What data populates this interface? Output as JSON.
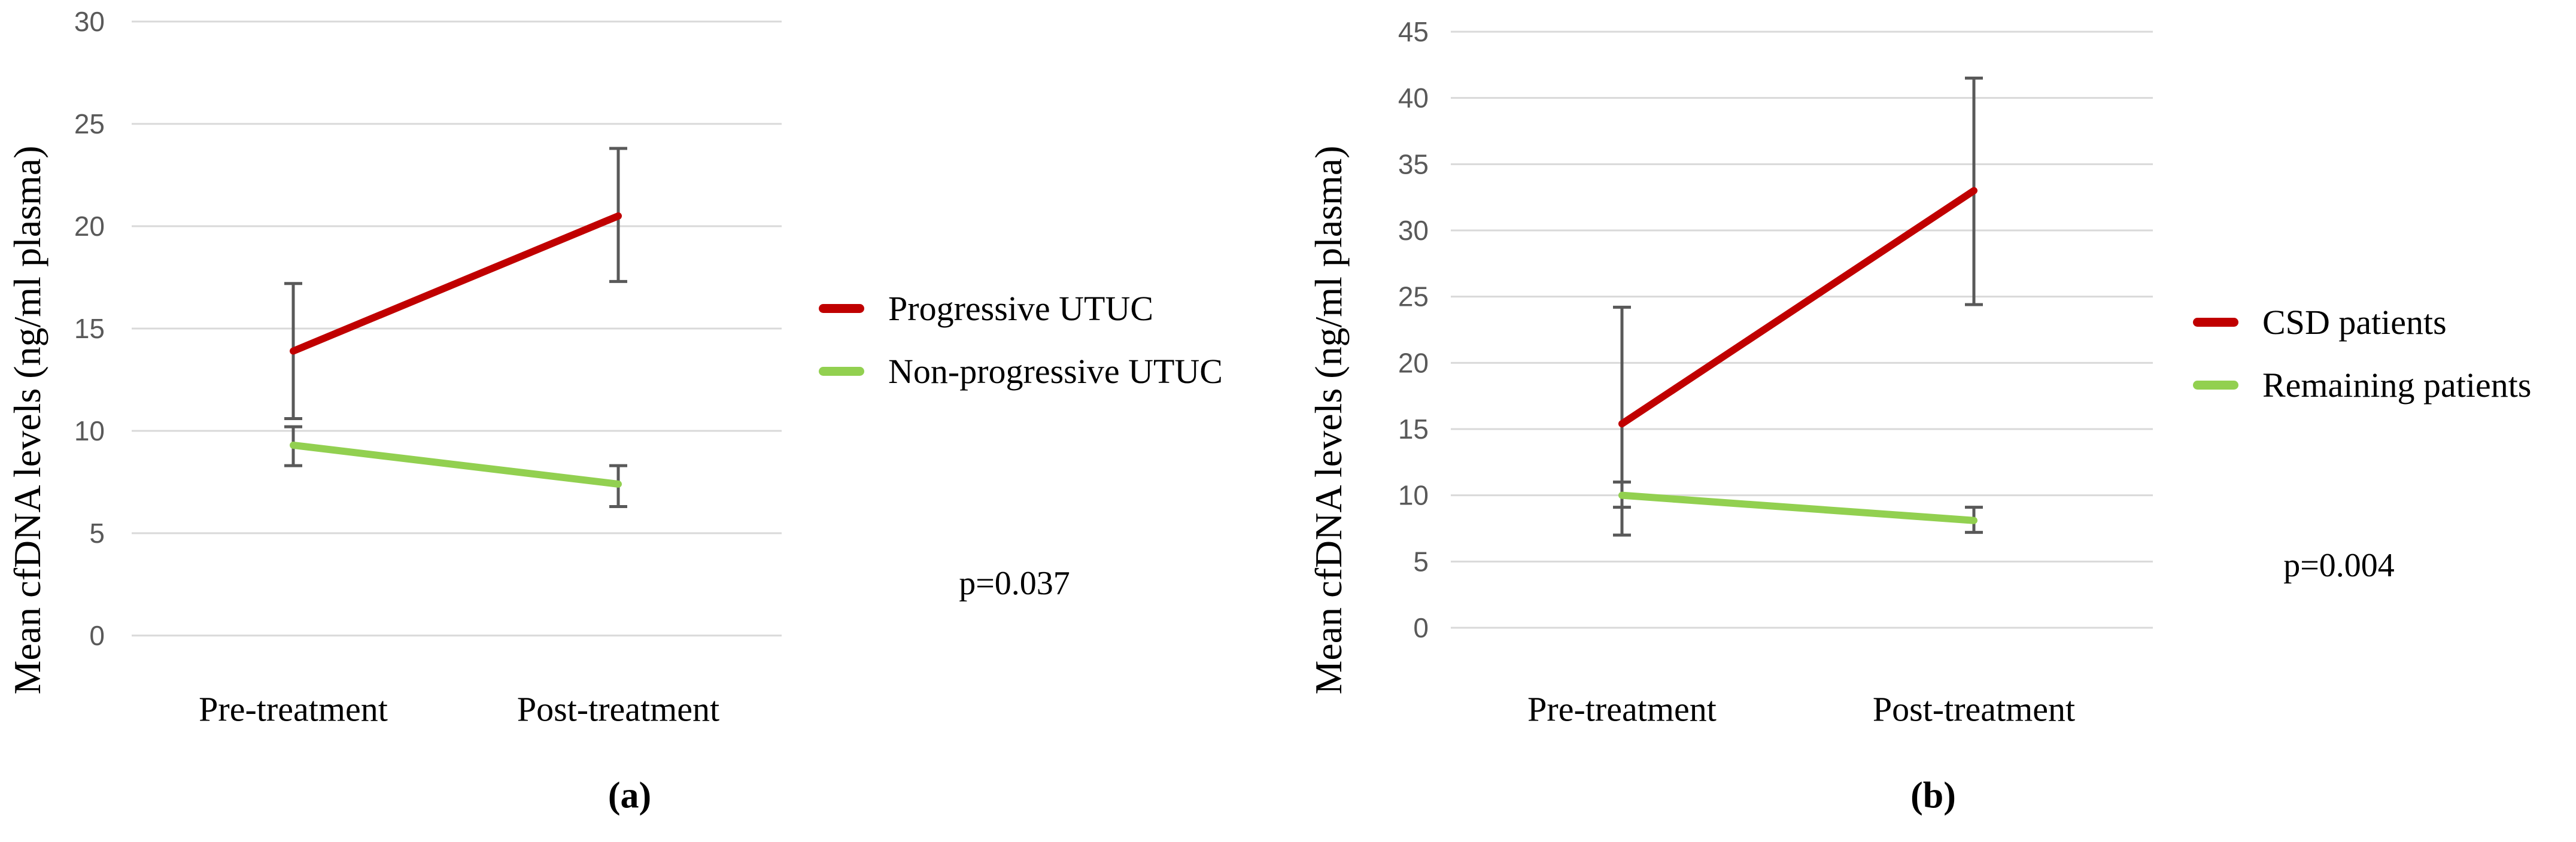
{
  "styles": {
    "grid_color": "#d9d9d9",
    "error_bar_color": "#595959",
    "tick_label_color": "#595959",
    "text_color": "#000000",
    "background_color": "#ffffff"
  },
  "chart_data": [
    {
      "type": "line",
      "panel_label": "(a)",
      "title": "",
      "xlabel": "",
      "ylabel": "Mean cfDNA levels (ng/ml plasma)",
      "categories": [
        "Pre-treatment",
        "Post-treatment"
      ],
      "ylim": [
        0,
        30
      ],
      "yticks": [
        0,
        5,
        10,
        15,
        20,
        25,
        30
      ],
      "grid": true,
      "legend_position": "right-of-plot",
      "annotation": "p=0.037",
      "series": [
        {
          "name": "Progressive UTUC",
          "color": "#c00000",
          "values": [
            13.9,
            20.5
          ],
          "error_low": [
            10.6,
            17.3
          ],
          "error_high": [
            17.2,
            23.8
          ]
        },
        {
          "name": "Non-progressive UTUC",
          "color": "#92d050",
          "values": [
            9.3,
            7.4
          ],
          "error_low": [
            8.3,
            6.3
          ],
          "error_high": [
            10.2,
            8.3
          ]
        }
      ]
    },
    {
      "type": "line",
      "panel_label": "(b)",
      "title": "",
      "xlabel": "",
      "ylabel": "Mean cfDNA levels (ng/ml plasma)",
      "categories": [
        "Pre-treatment",
        "Post-treatment"
      ],
      "ylim": [
        0,
        45
      ],
      "yticks": [
        0,
        5,
        10,
        15,
        20,
        25,
        30,
        35,
        40,
        45
      ],
      "grid": true,
      "legend_position": "right-of-plot",
      "annotation": "p=0.004",
      "series": [
        {
          "name": "CSD patients",
          "color": "#c00000",
          "values": [
            15.4,
            33.0
          ],
          "error_low": [
            7.0,
            24.4
          ],
          "error_high": [
            24.2,
            41.5
          ]
        },
        {
          "name": "Remaining patients",
          "color": "#92d050",
          "values": [
            10.0,
            8.1
          ],
          "error_low": [
            9.1,
            7.2
          ],
          "error_high": [
            11.0,
            9.1
          ]
        }
      ]
    }
  ]
}
